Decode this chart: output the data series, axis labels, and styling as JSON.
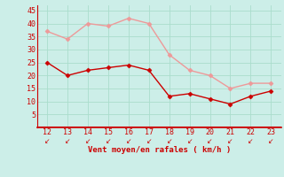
{
  "x": [
    12,
    13,
    14,
    15,
    16,
    17,
    18,
    19,
    20,
    21,
    22,
    23
  ],
  "y_mean": [
    25,
    20,
    22,
    23,
    24,
    22,
    12,
    13,
    11,
    9,
    12,
    14
  ],
  "y_gust": [
    37,
    34,
    40,
    39,
    42,
    40,
    28,
    22,
    20,
    15,
    17,
    17
  ],
  "mean_color": "#cc0000",
  "gust_color": "#ee9999",
  "bg_color": "#cceee8",
  "grid_color": "#aaddcc",
  "spine_color": "#cc0000",
  "xlabel": "Vent moyen/en rafales ( km/h )",
  "xlabel_color": "#cc0000",
  "tick_color": "#cc0000",
  "ylim": [
    0,
    47
  ],
  "yticks": [
    5,
    10,
    15,
    20,
    25,
    30,
    35,
    40,
    45
  ],
  "xlim": [
    11.5,
    23.5
  ],
  "xticks": [
    12,
    13,
    14,
    15,
    16,
    17,
    18,
    19,
    20,
    21,
    22,
    23
  ]
}
